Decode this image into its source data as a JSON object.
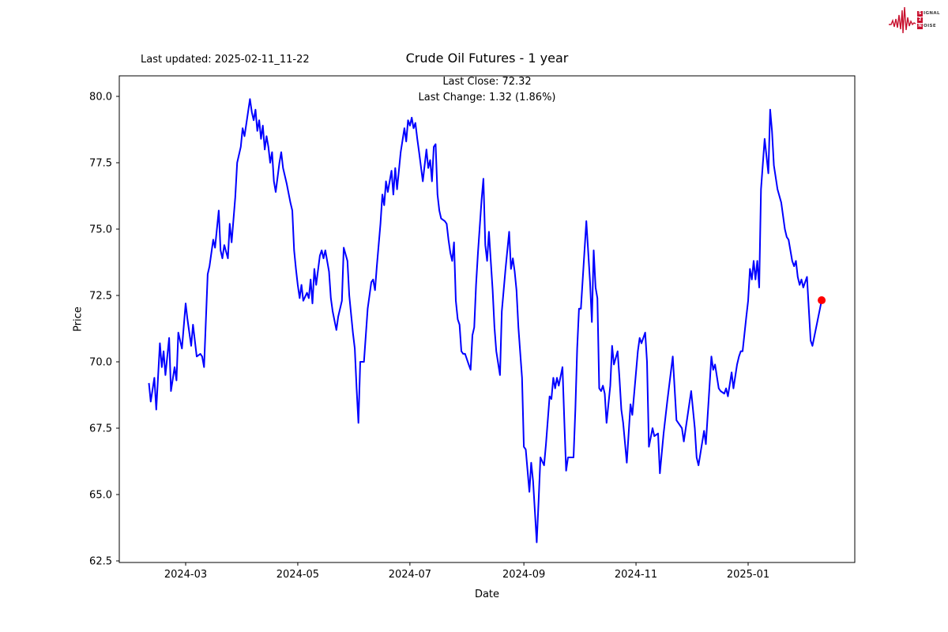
{
  "header": {
    "last_updated": "Last updated: 2025-02-11_11-22",
    "title": "Crude Oil Futures - 1 year",
    "annotation_line1": "Last Close: 72.32",
    "annotation_line2": "Last Change: 1.32 (1.86%)"
  },
  "logo": {
    "word1_initial": "S",
    "word1_rest": "IGNAL",
    "word2": "2",
    "word3_initial": "N",
    "word3_rest": "OISE",
    "accent_color": "#c8102e"
  },
  "chart_data": {
    "type": "line",
    "title": "Crude Oil Futures - 1 year",
    "xlabel": "Date",
    "ylabel": "Price",
    "last_close": 72.32,
    "last_change": "1.32 (1.86%)",
    "line_color": "#0000ff",
    "last_point_color": "#ff0000",
    "ylim": [
      62.4,
      80.8
    ],
    "yticks": [
      62.5,
      65.0,
      67.5,
      70.0,
      72.5,
      75.0,
      77.5,
      80.0
    ],
    "xticks": [
      "2024-03",
      "2024-05",
      "2024-07",
      "2024-09",
      "2024-11",
      "2025-01"
    ],
    "grid": false,
    "legend": "none",
    "series": [
      {
        "name": "Crude Oil Futures",
        "points": [
          [
            "2024-02-10",
            69.2
          ],
          [
            "2024-02-11",
            68.5
          ],
          [
            "2024-02-13",
            69.4
          ],
          [
            "2024-02-14",
            68.2
          ],
          [
            "2024-02-16",
            70.7
          ],
          [
            "2024-02-17",
            69.8
          ],
          [
            "2024-02-18",
            70.4
          ],
          [
            "2024-02-19",
            69.5
          ],
          [
            "2024-02-21",
            70.9
          ],
          [
            "2024-02-22",
            68.9
          ],
          [
            "2024-02-24",
            69.8
          ],
          [
            "2024-02-25",
            69.3
          ],
          [
            "2024-02-26",
            71.1
          ],
          [
            "2024-02-28",
            70.5
          ],
          [
            "2024-03-01",
            72.2
          ],
          [
            "2024-03-02",
            71.6
          ],
          [
            "2024-03-04",
            70.6
          ],
          [
            "2024-03-05",
            71.4
          ],
          [
            "2024-03-07",
            70.2
          ],
          [
            "2024-03-09",
            70.3
          ],
          [
            "2024-03-10",
            70.2
          ],
          [
            "2024-03-11",
            69.8
          ],
          [
            "2024-03-13",
            73.3
          ],
          [
            "2024-03-14",
            73.6
          ],
          [
            "2024-03-16",
            74.6
          ],
          [
            "2024-03-17",
            74.3
          ],
          [
            "2024-03-19",
            75.7
          ],
          [
            "2024-03-20",
            74.2
          ],
          [
            "2024-03-21",
            73.9
          ],
          [
            "2024-03-22",
            74.4
          ],
          [
            "2024-03-24",
            73.9
          ],
          [
            "2024-03-25",
            75.2
          ],
          [
            "2024-03-26",
            74.5
          ],
          [
            "2024-03-28",
            76.2
          ],
          [
            "2024-03-29",
            77.5
          ],
          [
            "2024-03-31",
            78.1
          ],
          [
            "2024-04-01",
            78.8
          ],
          [
            "2024-04-02",
            78.5
          ],
          [
            "2024-04-05",
            79.9
          ],
          [
            "2024-04-06",
            79.4
          ],
          [
            "2024-04-07",
            79.1
          ],
          [
            "2024-04-08",
            79.5
          ],
          [
            "2024-04-09",
            78.7
          ],
          [
            "2024-04-10",
            79.1
          ],
          [
            "2024-04-11",
            78.4
          ],
          [
            "2024-04-12",
            78.9
          ],
          [
            "2024-04-13",
            78.0
          ],
          [
            "2024-04-14",
            78.5
          ],
          [
            "2024-04-15",
            78.1
          ],
          [
            "2024-04-16",
            77.5
          ],
          [
            "2024-04-17",
            77.9
          ],
          [
            "2024-04-18",
            76.8
          ],
          [
            "2024-04-19",
            76.4
          ],
          [
            "2024-04-21",
            77.5
          ],
          [
            "2024-04-22",
            77.9
          ],
          [
            "2024-04-23",
            77.3
          ],
          [
            "2024-04-25",
            76.7
          ],
          [
            "2024-04-27",
            76.0
          ],
          [
            "2024-04-28",
            75.7
          ],
          [
            "2024-04-29",
            74.2
          ],
          [
            "2024-04-30",
            73.5
          ],
          [
            "2024-05-01",
            72.9
          ],
          [
            "2024-05-02",
            72.4
          ],
          [
            "2024-05-03",
            72.9
          ],
          [
            "2024-05-04",
            72.3
          ],
          [
            "2024-05-06",
            72.6
          ],
          [
            "2024-05-07",
            72.4
          ],
          [
            "2024-05-08",
            73.1
          ],
          [
            "2024-05-09",
            72.2
          ],
          [
            "2024-05-10",
            73.5
          ],
          [
            "2024-05-11",
            72.9
          ],
          [
            "2024-05-13",
            74.0
          ],
          [
            "2024-05-14",
            74.2
          ],
          [
            "2024-05-15",
            73.9
          ],
          [
            "2024-05-16",
            74.2
          ],
          [
            "2024-05-18",
            73.4
          ],
          [
            "2024-05-19",
            72.4
          ],
          [
            "2024-05-20",
            71.9
          ],
          [
            "2024-05-22",
            71.2
          ],
          [
            "2024-05-23",
            71.7
          ],
          [
            "2024-05-25",
            72.3
          ],
          [
            "2024-05-26",
            74.3
          ],
          [
            "2024-05-28",
            73.8
          ],
          [
            "2024-05-29",
            72.5
          ],
          [
            "2024-05-31",
            71.1
          ],
          [
            "2024-06-01",
            70.5
          ],
          [
            "2024-06-02",
            69.0
          ],
          [
            "2024-06-03",
            67.7
          ],
          [
            "2024-06-04",
            70.0
          ],
          [
            "2024-06-06",
            70.0
          ],
          [
            "2024-06-08",
            72.0
          ],
          [
            "2024-06-10",
            73.0
          ],
          [
            "2024-06-11",
            73.1
          ],
          [
            "2024-06-12",
            72.7
          ],
          [
            "2024-06-13",
            73.6
          ],
          [
            "2024-06-15",
            75.2
          ],
          [
            "2024-06-16",
            76.3
          ],
          [
            "2024-06-17",
            75.9
          ],
          [
            "2024-06-18",
            76.8
          ],
          [
            "2024-06-19",
            76.4
          ],
          [
            "2024-06-21",
            77.2
          ],
          [
            "2024-06-22",
            76.3
          ],
          [
            "2024-06-23",
            77.3
          ],
          [
            "2024-06-24",
            76.5
          ],
          [
            "2024-06-26",
            77.9
          ],
          [
            "2024-06-28",
            78.8
          ],
          [
            "2024-06-29",
            78.3
          ],
          [
            "2024-06-30",
            79.1
          ],
          [
            "2024-07-01",
            78.9
          ],
          [
            "2024-07-02",
            79.2
          ],
          [
            "2024-07-03",
            78.8
          ],
          [
            "2024-07-04",
            79.0
          ],
          [
            "2024-07-05",
            78.4
          ],
          [
            "2024-07-06",
            77.9
          ],
          [
            "2024-07-08",
            76.8
          ],
          [
            "2024-07-10",
            78.0
          ],
          [
            "2024-07-11",
            77.3
          ],
          [
            "2024-07-12",
            77.6
          ],
          [
            "2024-07-13",
            76.8
          ],
          [
            "2024-07-14",
            78.1
          ],
          [
            "2024-07-15",
            78.2
          ],
          [
            "2024-07-16",
            76.3
          ],
          [
            "2024-07-17",
            75.7
          ],
          [
            "2024-07-18",
            75.4
          ],
          [
            "2024-07-20",
            75.3
          ],
          [
            "2024-07-21",
            75.2
          ],
          [
            "2024-07-22",
            74.6
          ],
          [
            "2024-07-23",
            74.1
          ],
          [
            "2024-07-24",
            73.8
          ],
          [
            "2024-07-25",
            74.5
          ],
          [
            "2024-07-26",
            72.3
          ],
          [
            "2024-07-27",
            71.6
          ],
          [
            "2024-07-28",
            71.4
          ],
          [
            "2024-07-29",
            70.4
          ],
          [
            "2024-07-30",
            70.3
          ],
          [
            "2024-07-31",
            70.3
          ],
          [
            "2024-08-02",
            69.9
          ],
          [
            "2024-08-03",
            69.7
          ],
          [
            "2024-08-04",
            71.0
          ],
          [
            "2024-08-05",
            71.3
          ],
          [
            "2024-08-06",
            72.9
          ],
          [
            "2024-08-07",
            74.1
          ],
          [
            "2024-08-08",
            75.1
          ],
          [
            "2024-08-09",
            76.1
          ],
          [
            "2024-08-10",
            76.9
          ],
          [
            "2024-08-11",
            74.4
          ],
          [
            "2024-08-12",
            73.8
          ],
          [
            "2024-08-13",
            74.9
          ],
          [
            "2024-08-15",
            72.7
          ],
          [
            "2024-08-16",
            71.3
          ],
          [
            "2024-08-17",
            70.4
          ],
          [
            "2024-08-19",
            69.5
          ],
          [
            "2024-08-20",
            71.9
          ],
          [
            "2024-08-22",
            73.5
          ],
          [
            "2024-08-24",
            74.9
          ],
          [
            "2024-08-25",
            73.5
          ],
          [
            "2024-08-26",
            73.9
          ],
          [
            "2024-08-27",
            73.4
          ],
          [
            "2024-08-28",
            72.7
          ],
          [
            "2024-08-29",
            71.3
          ],
          [
            "2024-08-31",
            69.4
          ],
          [
            "2024-09-01",
            66.8
          ],
          [
            "2024-09-02",
            66.7
          ],
          [
            "2024-09-04",
            65.1
          ],
          [
            "2024-09-05",
            66.2
          ],
          [
            "2024-09-06",
            65.5
          ],
          [
            "2024-09-08",
            63.2
          ],
          [
            "2024-09-09",
            64.7
          ],
          [
            "2024-09-10",
            66.4
          ],
          [
            "2024-09-12",
            66.1
          ],
          [
            "2024-09-13",
            66.9
          ],
          [
            "2024-09-15",
            68.7
          ],
          [
            "2024-09-16",
            68.6
          ],
          [
            "2024-09-17",
            69.4
          ],
          [
            "2024-09-18",
            69.0
          ],
          [
            "2024-09-19",
            69.4
          ],
          [
            "2024-09-20",
            69.1
          ],
          [
            "2024-09-22",
            69.8
          ],
          [
            "2024-09-23",
            67.8
          ],
          [
            "2024-09-24",
            65.9
          ],
          [
            "2024-09-25",
            66.4
          ],
          [
            "2024-09-28",
            66.4
          ],
          [
            "2024-09-29",
            68.2
          ],
          [
            "2024-09-30",
            70.5
          ],
          [
            "2024-10-01",
            72.0
          ],
          [
            "2024-10-02",
            72.0
          ],
          [
            "2024-10-05",
            75.3
          ],
          [
            "2024-10-07",
            73.0
          ],
          [
            "2024-10-08",
            71.5
          ],
          [
            "2024-10-09",
            74.2
          ],
          [
            "2024-10-10",
            72.8
          ],
          [
            "2024-10-11",
            72.4
          ],
          [
            "2024-10-12",
            69.0
          ],
          [
            "2024-10-13",
            68.9
          ],
          [
            "2024-10-14",
            69.1
          ],
          [
            "2024-10-15",
            68.8
          ],
          [
            "2024-10-16",
            67.7
          ],
          [
            "2024-10-18",
            69.1
          ],
          [
            "2024-10-19",
            70.6
          ],
          [
            "2024-10-20",
            69.9
          ],
          [
            "2024-10-22",
            70.4
          ],
          [
            "2024-10-23",
            69.4
          ],
          [
            "2024-10-24",
            68.2
          ],
          [
            "2024-10-25",
            67.7
          ],
          [
            "2024-10-27",
            66.2
          ],
          [
            "2024-10-29",
            68.4
          ],
          [
            "2024-10-30",
            68.0
          ],
          [
            "2024-11-02",
            70.4
          ],
          [
            "2024-11-03",
            70.9
          ],
          [
            "2024-11-04",
            70.7
          ],
          [
            "2024-11-06",
            71.1
          ],
          [
            "2024-11-07",
            70.0
          ],
          [
            "2024-11-08",
            66.8
          ],
          [
            "2024-11-10",
            67.5
          ],
          [
            "2024-11-11",
            67.2
          ],
          [
            "2024-11-13",
            67.3
          ],
          [
            "2024-11-14",
            65.8
          ],
          [
            "2024-11-16",
            67.3
          ],
          [
            "2024-11-18",
            68.5
          ],
          [
            "2024-11-21",
            70.2
          ],
          [
            "2024-11-23",
            67.8
          ],
          [
            "2024-11-24",
            67.7
          ],
          [
            "2024-11-26",
            67.5
          ],
          [
            "2024-11-27",
            67.0
          ],
          [
            "2024-12-01",
            68.9
          ],
          [
            "2024-12-03",
            67.5
          ],
          [
            "2024-12-04",
            66.4
          ],
          [
            "2024-12-05",
            66.1
          ],
          [
            "2024-12-08",
            67.4
          ],
          [
            "2024-12-09",
            66.9
          ],
          [
            "2024-12-12",
            70.2
          ],
          [
            "2024-12-13",
            69.7
          ],
          [
            "2024-12-14",
            69.9
          ],
          [
            "2024-12-16",
            69.0
          ],
          [
            "2024-12-17",
            68.9
          ],
          [
            "2024-12-19",
            68.8
          ],
          [
            "2024-12-20",
            69.0
          ],
          [
            "2024-12-21",
            68.7
          ],
          [
            "2024-12-23",
            69.6
          ],
          [
            "2024-12-24",
            69.0
          ],
          [
            "2024-12-26",
            69.9
          ],
          [
            "2024-12-27",
            70.2
          ],
          [
            "2024-12-28",
            70.4
          ],
          [
            "2024-12-29",
            70.4
          ],
          [
            "2024-12-31",
            71.7
          ],
          [
            "2025-01-01",
            72.3
          ],
          [
            "2025-01-02",
            73.5
          ],
          [
            "2025-01-03",
            73.1
          ],
          [
            "2025-01-04",
            73.8
          ],
          [
            "2025-01-05",
            73.1
          ],
          [
            "2025-01-06",
            73.8
          ],
          [
            "2025-01-07",
            72.8
          ],
          [
            "2025-01-08",
            76.5
          ],
          [
            "2025-01-10",
            78.4
          ],
          [
            "2025-01-12",
            77.1
          ],
          [
            "2025-01-13",
            79.5
          ],
          [
            "2025-01-14",
            78.7
          ],
          [
            "2025-01-15",
            77.4
          ],
          [
            "2025-01-17",
            76.5
          ],
          [
            "2025-01-19",
            76.0
          ],
          [
            "2025-01-21",
            75.0
          ],
          [
            "2025-01-22",
            74.7
          ],
          [
            "2025-01-23",
            74.6
          ],
          [
            "2025-01-25",
            73.8
          ],
          [
            "2025-01-26",
            73.6
          ],
          [
            "2025-01-27",
            73.8
          ],
          [
            "2025-01-28",
            73.2
          ],
          [
            "2025-01-29",
            72.9
          ],
          [
            "2025-01-30",
            73.1
          ],
          [
            "2025-01-31",
            72.8
          ],
          [
            "2025-02-02",
            73.2
          ],
          [
            "2025-02-04",
            70.8
          ],
          [
            "2025-02-05",
            70.6
          ],
          [
            "2025-02-10",
            72.32
          ]
        ]
      }
    ]
  }
}
